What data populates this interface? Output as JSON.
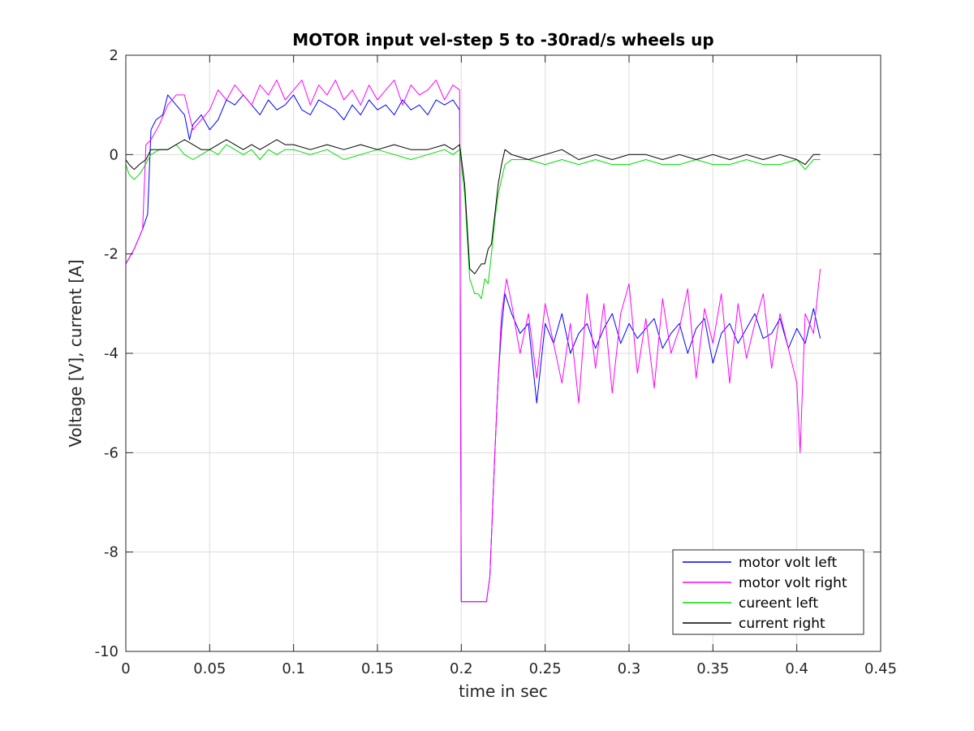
{
  "chart_data": {
    "type": "line",
    "title": "MOTOR input vel-step 5 to -30rad/s wheels up",
    "xlabel": "time in sec",
    "ylabel": "Voltage [V], current [A]",
    "xlim": [
      0,
      0.45
    ],
    "ylim": [
      -10,
      2
    ],
    "xticks": [
      0,
      0.05,
      0.1,
      0.15,
      0.2,
      0.25,
      0.3,
      0.35,
      0.4,
      0.45
    ],
    "xtick_labels": [
      "0",
      "0.05",
      "0.1",
      "0.15",
      "0.2",
      "0.25",
      "0.3",
      "0.35",
      "0.4",
      "0.45"
    ],
    "yticks": [
      -10,
      -8,
      -6,
      -4,
      -2,
      0,
      2
    ],
    "ytick_labels": [
      "-10",
      "-8",
      "-6",
      "-4",
      "-2",
      "0",
      "2"
    ],
    "grid": true,
    "legend_position": "bottom-right",
    "series": [
      {
        "name": "motor volt left",
        "color": "#0000ff",
        "x": [
          0,
          0.005,
          0.01,
          0.013,
          0.015,
          0.018,
          0.022,
          0.025,
          0.03,
          0.035,
          0.038,
          0.04,
          0.045,
          0.05,
          0.055,
          0.06,
          0.065,
          0.07,
          0.075,
          0.08,
          0.085,
          0.09,
          0.095,
          0.1,
          0.105,
          0.11,
          0.115,
          0.12,
          0.125,
          0.13,
          0.135,
          0.14,
          0.145,
          0.15,
          0.155,
          0.16,
          0.165,
          0.17,
          0.175,
          0.18,
          0.185,
          0.19,
          0.195,
          0.199,
          0.2,
          0.205,
          0.21,
          0.215,
          0.217,
          0.22,
          0.222,
          0.224,
          0.226,
          0.23,
          0.235,
          0.24,
          0.245,
          0.25,
          0.255,
          0.26,
          0.265,
          0.27,
          0.275,
          0.28,
          0.285,
          0.29,
          0.295,
          0.3,
          0.305,
          0.31,
          0.315,
          0.32,
          0.325,
          0.33,
          0.335,
          0.34,
          0.345,
          0.35,
          0.355,
          0.36,
          0.365,
          0.37,
          0.375,
          0.38,
          0.385,
          0.39,
          0.395,
          0.4,
          0.405,
          0.41,
          0.414
        ],
        "y": [
          -2.2,
          -1.9,
          -1.5,
          -1.2,
          0.5,
          0.7,
          0.8,
          1.2,
          1.0,
          0.8,
          0.3,
          0.6,
          0.8,
          0.5,
          0.7,
          1.1,
          1.0,
          1.2,
          1.0,
          0.8,
          1.1,
          0.9,
          1.0,
          1.2,
          0.9,
          0.8,
          1.1,
          1.0,
          0.9,
          0.7,
          1.0,
          0.8,
          1.1,
          0.9,
          1.0,
          0.8,
          1.1,
          0.9,
          1.0,
          0.8,
          1.1,
          1.0,
          1.1,
          0.9,
          -9.0,
          -9.0,
          -9.0,
          -9.0,
          -8.5,
          -6.0,
          -4.5,
          -3.5,
          -2.8,
          -3.2,
          -3.6,
          -3.4,
          -5.0,
          -3.4,
          -3.8,
          -3.2,
          -4.0,
          -3.6,
          -3.4,
          -3.9,
          -3.5,
          -3.2,
          -3.8,
          -3.4,
          -3.7,
          -3.5,
          -3.3,
          -3.9,
          -3.6,
          -3.4,
          -4.0,
          -3.5,
          -3.3,
          -4.2,
          -3.6,
          -3.4,
          -3.8,
          -3.5,
          -3.2,
          -3.7,
          -3.6,
          -3.3,
          -3.9,
          -3.5,
          -3.8,
          -3.1,
          -3.7
        ]
      },
      {
        "name": "motor volt right",
        "color": "#ff00ff",
        "x": [
          0,
          0.005,
          0.01,
          0.012,
          0.015,
          0.02,
          0.025,
          0.03,
          0.035,
          0.04,
          0.045,
          0.05,
          0.055,
          0.06,
          0.065,
          0.07,
          0.075,
          0.08,
          0.085,
          0.09,
          0.095,
          0.1,
          0.105,
          0.11,
          0.115,
          0.12,
          0.125,
          0.13,
          0.135,
          0.14,
          0.145,
          0.15,
          0.155,
          0.16,
          0.165,
          0.17,
          0.175,
          0.18,
          0.185,
          0.19,
          0.195,
          0.199,
          0.2,
          0.205,
          0.21,
          0.215,
          0.217,
          0.22,
          0.222,
          0.224,
          0.227,
          0.23,
          0.235,
          0.24,
          0.245,
          0.25,
          0.255,
          0.26,
          0.265,
          0.27,
          0.275,
          0.28,
          0.285,
          0.29,
          0.295,
          0.3,
          0.305,
          0.31,
          0.315,
          0.32,
          0.325,
          0.33,
          0.335,
          0.34,
          0.345,
          0.35,
          0.355,
          0.36,
          0.365,
          0.37,
          0.375,
          0.38,
          0.385,
          0.39,
          0.395,
          0.4,
          0.402,
          0.405,
          0.41,
          0.414
        ],
        "y": [
          -2.2,
          -1.9,
          -1.5,
          0.2,
          0.3,
          0.6,
          1.0,
          1.2,
          1.2,
          0.5,
          0.7,
          0.9,
          1.3,
          1.1,
          1.4,
          1.2,
          1.0,
          1.4,
          1.2,
          1.5,
          1.1,
          1.3,
          1.5,
          1.0,
          1.4,
          1.2,
          1.5,
          1.1,
          1.3,
          1.0,
          1.4,
          1.1,
          1.3,
          1.5,
          1.0,
          1.4,
          1.2,
          1.3,
          1.5,
          1.1,
          1.4,
          1.3,
          -9.0,
          -9.0,
          -9.0,
          -9.0,
          -8.5,
          -6.0,
          -4.5,
          -3.2,
          -2.5,
          -3.0,
          -4.0,
          -3.2,
          -4.5,
          -3.0,
          -3.8,
          -4.6,
          -3.4,
          -5.0,
          -2.8,
          -4.3,
          -3.0,
          -4.8,
          -3.2,
          -2.6,
          -4.4,
          -3.3,
          -4.7,
          -2.9,
          -4.0,
          -3.5,
          -2.7,
          -4.5,
          -3.1,
          -3.8,
          -2.8,
          -4.6,
          -3.0,
          -4.1,
          -3.4,
          -2.8,
          -4.3,
          -3.2,
          -3.9,
          -4.6,
          -6.0,
          -3.2,
          -3.6,
          -2.3
        ]
      },
      {
        "name": "cureent left",
        "color": "#00dd00",
        "x": [
          0,
          0.002,
          0.005,
          0.008,
          0.01,
          0.015,
          0.02,
          0.025,
          0.03,
          0.035,
          0.04,
          0.045,
          0.05,
          0.055,
          0.06,
          0.065,
          0.07,
          0.075,
          0.08,
          0.085,
          0.09,
          0.095,
          0.1,
          0.11,
          0.12,
          0.13,
          0.14,
          0.15,
          0.16,
          0.17,
          0.18,
          0.19,
          0.195,
          0.199,
          0.202,
          0.205,
          0.208,
          0.21,
          0.212,
          0.214,
          0.216,
          0.218,
          0.22,
          0.222,
          0.224,
          0.226,
          0.23,
          0.24,
          0.25,
          0.26,
          0.27,
          0.28,
          0.29,
          0.3,
          0.31,
          0.32,
          0.33,
          0.34,
          0.35,
          0.36,
          0.37,
          0.38,
          0.39,
          0.4,
          0.405,
          0.41,
          0.414
        ],
        "y": [
          -0.2,
          -0.4,
          -0.5,
          -0.4,
          -0.3,
          0.0,
          0.1,
          0.1,
          0.2,
          0.0,
          -0.1,
          0.0,
          0.1,
          0.0,
          0.2,
          0.1,
          0.0,
          0.1,
          -0.1,
          0.1,
          0.0,
          0.1,
          0.1,
          0.0,
          0.1,
          -0.1,
          0.0,
          0.1,
          0.0,
          -0.1,
          0.0,
          0.1,
          0.0,
          0.1,
          -0.8,
          -2.5,
          -2.8,
          -2.8,
          -2.9,
          -2.5,
          -2.6,
          -2.0,
          -1.3,
          -0.8,
          -0.5,
          -0.2,
          -0.1,
          -0.1,
          -0.2,
          -0.1,
          -0.2,
          -0.1,
          -0.2,
          -0.2,
          -0.1,
          -0.2,
          -0.2,
          -0.1,
          -0.2,
          -0.2,
          -0.1,
          -0.2,
          -0.2,
          -0.1,
          -0.3,
          -0.1,
          -0.1
        ]
      },
      {
        "name": "current right",
        "color": "#000000",
        "x": [
          0,
          0.002,
          0.005,
          0.008,
          0.012,
          0.015,
          0.02,
          0.025,
          0.03,
          0.035,
          0.04,
          0.045,
          0.05,
          0.055,
          0.06,
          0.065,
          0.07,
          0.075,
          0.08,
          0.085,
          0.09,
          0.095,
          0.1,
          0.11,
          0.12,
          0.13,
          0.14,
          0.15,
          0.16,
          0.17,
          0.18,
          0.19,
          0.195,
          0.199,
          0.202,
          0.205,
          0.208,
          0.21,
          0.212,
          0.214,
          0.216,
          0.218,
          0.22,
          0.222,
          0.224,
          0.226,
          0.23,
          0.24,
          0.25,
          0.26,
          0.27,
          0.28,
          0.29,
          0.3,
          0.31,
          0.32,
          0.33,
          0.34,
          0.35,
          0.36,
          0.37,
          0.38,
          0.39,
          0.4,
          0.405,
          0.41,
          0.414
        ],
        "y": [
          -0.1,
          -0.2,
          -0.3,
          -0.2,
          -0.1,
          0.1,
          0.1,
          0.1,
          0.2,
          0.3,
          0.2,
          0.1,
          0.1,
          0.2,
          0.3,
          0.2,
          0.1,
          0.2,
          0.1,
          0.2,
          0.3,
          0.2,
          0.2,
          0.1,
          0.2,
          0.1,
          0.2,
          0.1,
          0.2,
          0.1,
          0.1,
          0.2,
          0.1,
          0.2,
          -0.6,
          -2.3,
          -2.4,
          -2.3,
          -2.2,
          -2.2,
          -1.9,
          -1.8,
          -1.2,
          -0.6,
          -0.2,
          0.1,
          0.0,
          -0.1,
          0.0,
          0.1,
          -0.1,
          0.0,
          -0.1,
          0.0,
          0.0,
          -0.1,
          0.0,
          -0.1,
          0.0,
          -0.1,
          0.0,
          -0.1,
          0.0,
          -0.1,
          -0.2,
          0.0,
          0.0
        ]
      }
    ]
  }
}
